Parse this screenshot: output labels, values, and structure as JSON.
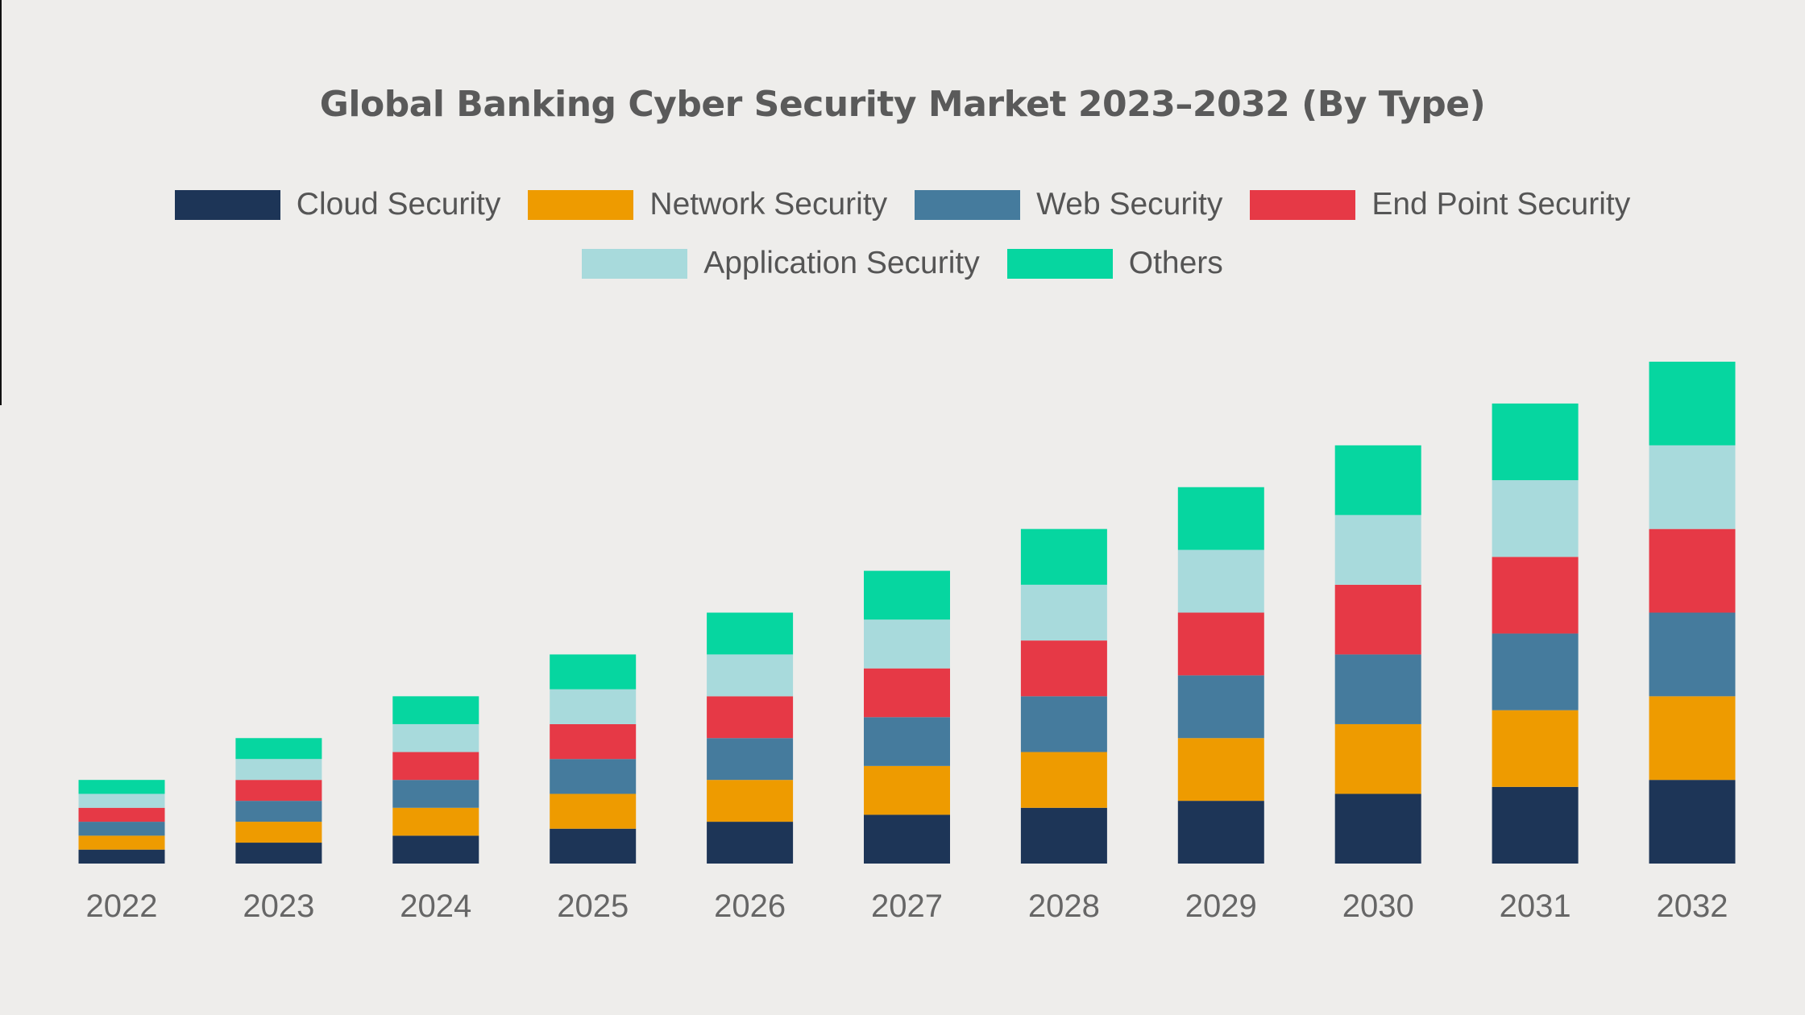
{
  "chart_data": {
    "type": "bar",
    "stacked": true,
    "title": "Global Banking Cyber Security Market 2023–2032 (By Type)",
    "xlabel": "",
    "ylabel": "",
    "y_axis_shown": false,
    "grid": false,
    "legend_position": "top",
    "value_note": "no y-axis printed; values are relative segment sizes",
    "categories": [
      "2022",
      "2023",
      "2024",
      "2025",
      "2026",
      "2027",
      "2028",
      "2029",
      "2030",
      "2031",
      "2032"
    ],
    "series": [
      {
        "name": "Cloud Security",
        "color": "#1d3557",
        "values": [
          2,
          3,
          4,
          5,
          6,
          7,
          8,
          9,
          10,
          11,
          12
        ]
      },
      {
        "name": "Network Security",
        "color": "#ee9b00",
        "values": [
          2,
          3,
          4,
          5,
          6,
          7,
          8,
          9,
          10,
          11,
          12
        ]
      },
      {
        "name": "Web Security",
        "color": "#457b9d",
        "values": [
          2,
          3,
          4,
          5,
          6,
          7,
          8,
          9,
          10,
          11,
          12
        ]
      },
      {
        "name": "End Point Security",
        "color": "#e63946",
        "values": [
          2,
          3,
          4,
          5,
          6,
          7,
          8,
          9,
          10,
          11,
          12
        ]
      },
      {
        "name": "Application Security",
        "color": "#a8dadc",
        "values": [
          2,
          3,
          4,
          5,
          6,
          7,
          8,
          9,
          10,
          11,
          12
        ]
      },
      {
        "name": "Others",
        "color": "#06d6a0",
        "values": [
          2,
          3,
          4,
          5,
          6,
          7,
          8,
          9,
          10,
          11,
          12
        ]
      }
    ]
  }
}
